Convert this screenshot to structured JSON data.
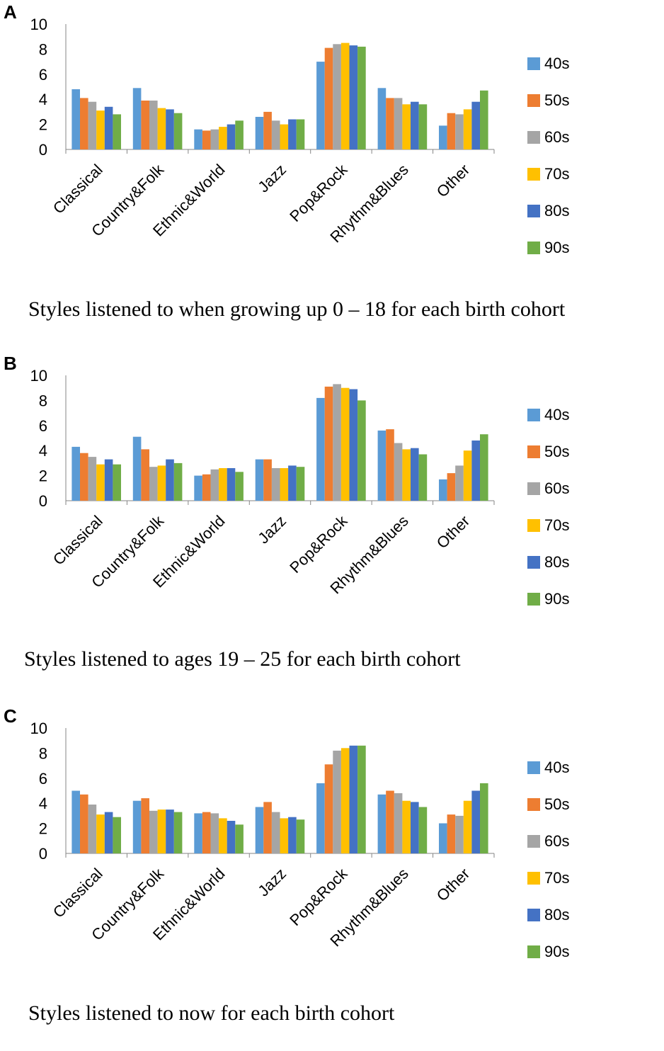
{
  "chart_data": [
    {
      "type": "bar",
      "panel_label": "A",
      "title": "Styles listened to when growing up 0 – 18 for each birth cohort",
      "categories": [
        "Classical",
        "Country&Folk",
        "Ethnic&World",
        "Jazz",
        "Pop&Rock",
        "Rhythm&Blues",
        "Other"
      ],
      "ylim": [
        0,
        10
      ],
      "yticks": [
        "0",
        "2",
        "4",
        "6",
        "8",
        "10"
      ],
      "series": [
        {
          "name": "40s",
          "values": [
            4.8,
            4.9,
            1.6,
            2.6,
            7.0,
            4.9,
            1.9
          ]
        },
        {
          "name": "50s",
          "values": [
            4.1,
            3.9,
            1.5,
            3.0,
            8.1,
            4.1,
            2.9
          ]
        },
        {
          "name": "60s",
          "values": [
            3.8,
            3.9,
            1.6,
            2.3,
            8.4,
            4.1,
            2.8
          ]
        },
        {
          "name": "70s",
          "values": [
            3.1,
            3.3,
            1.8,
            2.0,
            8.5,
            3.6,
            3.2
          ]
        },
        {
          "name": "80s",
          "values": [
            3.4,
            3.2,
            2.0,
            2.4,
            8.3,
            3.8,
            3.8
          ]
        },
        {
          "name": "90s",
          "values": [
            2.8,
            2.9,
            2.3,
            2.4,
            8.2,
            3.6,
            4.7
          ]
        }
      ]
    },
    {
      "type": "bar",
      "panel_label": "B",
      "title": "Styles listened to ages 19 – 25 for each birth cohort",
      "categories": [
        "Classical",
        "Country&Folk",
        "Ethnic&World",
        "Jazz",
        "Pop&Rock",
        "Rhythm&Blues",
        "Other"
      ],
      "ylim": [
        0,
        10
      ],
      "yticks": [
        "0",
        "2",
        "4",
        "6",
        "8",
        "10"
      ],
      "series": [
        {
          "name": "40s",
          "values": [
            4.3,
            5.1,
            2.0,
            3.3,
            8.2,
            5.6,
            1.7
          ]
        },
        {
          "name": "50s",
          "values": [
            3.8,
            4.1,
            2.1,
            3.3,
            9.1,
            5.7,
            2.2
          ]
        },
        {
          "name": "60s",
          "values": [
            3.5,
            2.7,
            2.5,
            2.6,
            9.3,
            4.6,
            2.8
          ]
        },
        {
          "name": "70s",
          "values": [
            2.9,
            2.8,
            2.6,
            2.6,
            9.0,
            4.1,
            4.0
          ]
        },
        {
          "name": "80s",
          "values": [
            3.3,
            3.3,
            2.6,
            2.8,
            8.9,
            4.2,
            4.8
          ]
        },
        {
          "name": "90s",
          "values": [
            2.9,
            3.0,
            2.3,
            2.7,
            8.0,
            3.7,
            5.3
          ]
        }
      ]
    },
    {
      "type": "bar",
      "panel_label": "C",
      "title": "Styles listened to now for each birth cohort",
      "categories": [
        "Classical",
        "Country&Folk",
        "Ethnic&World",
        "Jazz",
        "Pop&Rock",
        "Rhythm&Blues",
        "Other"
      ],
      "ylim": [
        0,
        10
      ],
      "yticks": [
        "0",
        "2",
        "4",
        "6",
        "8",
        "10"
      ],
      "series": [
        {
          "name": "40s",
          "values": [
            5.0,
            4.2,
            3.2,
            3.7,
            5.6,
            4.7,
            2.4
          ]
        },
        {
          "name": "50s",
          "values": [
            4.7,
            4.4,
            3.3,
            4.1,
            7.1,
            5.0,
            3.1
          ]
        },
        {
          "name": "60s",
          "values": [
            3.9,
            3.4,
            3.2,
            3.3,
            8.2,
            4.8,
            3.0
          ]
        },
        {
          "name": "70s",
          "values": [
            3.1,
            3.5,
            2.8,
            2.8,
            8.4,
            4.2,
            4.2
          ]
        },
        {
          "name": "80s",
          "values": [
            3.3,
            3.5,
            2.6,
            2.9,
            8.6,
            4.1,
            5.0
          ]
        },
        {
          "name": "90s",
          "values": [
            2.9,
            3.3,
            2.3,
            2.7,
            8.6,
            3.7,
            5.6
          ]
        }
      ]
    }
  ],
  "colors": {
    "40s": "#5b9bd5",
    "50s": "#ed7d31",
    "60s": "#a5a5a5",
    "70s": "#ffc000",
    "80s": "#4472c4",
    "90s": "#70ad47"
  }
}
